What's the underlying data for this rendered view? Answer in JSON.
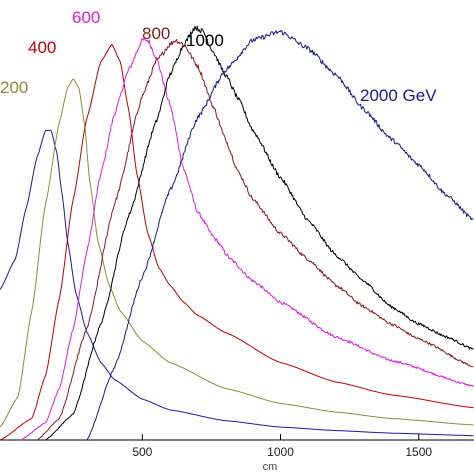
{
  "chart_data": {
    "type": "line",
    "title": "",
    "xlabel": "cm",
    "ylabel": "",
    "xlim": [
      -15,
      1700
    ],
    "ylim": [
      0,
      1.0
    ],
    "x_ticks": [
      500,
      1000,
      1500
    ],
    "x_tick_labels": [
      "500",
      "1000",
      "1500"
    ],
    "grid": false,
    "legend": "none",
    "series": [
      {
        "name": "",
        "label": "",
        "color": "#1a1aa6",
        "x": [
          -15,
          40,
          80,
          120,
          150,
          170,
          190,
          210,
          230,
          260,
          300,
          350,
          400,
          500,
          600,
          800,
          1000,
          1200,
          1400,
          1700
        ],
        "y": [
          0.35,
          0.42,
          0.54,
          0.66,
          0.72,
          0.72,
          0.67,
          0.57,
          0.46,
          0.34,
          0.25,
          0.18,
          0.14,
          0.095,
          0.07,
          0.045,
          0.03,
          0.022,
          0.016,
          0.01
        ]
      },
      {
        "name": "",
        "label": "200",
        "color": "#8c8c3c",
        "x": [
          -15,
          50,
          100,
          150,
          200,
          230,
          250,
          270,
          290,
          310,
          340,
          380,
          420,
          500,
          600,
          800,
          1000,
          1200,
          1400,
          1700
        ],
        "y": [
          0.03,
          0.1,
          0.3,
          0.55,
          0.74,
          0.82,
          0.84,
          0.82,
          0.74,
          0.6,
          0.46,
          0.36,
          0.3,
          0.23,
          0.18,
          0.12,
          0.085,
          0.065,
          0.05,
          0.035
        ]
      },
      {
        "name": "",
        "label": "400",
        "color": "#c00000",
        "x": [
          -15,
          100,
          150,
          200,
          250,
          300,
          350,
          390,
          420,
          450,
          480,
          520,
          560,
          600,
          650,
          700,
          800,
          1000,
          1200,
          1400,
          1700
        ],
        "y": [
          0.0,
          0.05,
          0.15,
          0.33,
          0.56,
          0.75,
          0.88,
          0.92,
          0.88,
          0.77,
          0.62,
          0.48,
          0.4,
          0.36,
          0.32,
          0.29,
          0.25,
          0.18,
          0.135,
          0.105,
          0.075
        ]
      },
      {
        "name": "",
        "label": "600",
        "color": "#e21ce0",
        "x": [
          60,
          150,
          200,
          250,
          300,
          350,
          400,
          450,
          500,
          520,
          550,
          600,
          650,
          700,
          760,
          820,
          900,
          1000,
          1200,
          1400,
          1700
        ],
        "y": [
          0.0,
          0.04,
          0.12,
          0.26,
          0.44,
          0.62,
          0.76,
          0.86,
          0.93,
          0.93,
          0.89,
          0.78,
          0.63,
          0.53,
          0.47,
          0.42,
          0.37,
          0.32,
          0.24,
          0.185,
          0.125
        ]
      },
      {
        "name": "",
        "label": "800",
        "color": "#8b1a1a",
        "x": [
          120,
          200,
          300,
          400,
          500,
          550,
          600,
          620,
          650,
          700,
          760,
          800,
          850,
          900,
          1000,
          1100,
          1200,
          1300,
          1400,
          1500,
          1700
        ],
        "y": [
          0.0,
          0.05,
          0.26,
          0.55,
          0.8,
          0.88,
          0.92,
          0.93,
          0.92,
          0.87,
          0.77,
          0.7,
          0.62,
          0.56,
          0.48,
          0.42,
          0.36,
          0.31,
          0.27,
          0.235,
          0.17
        ]
      },
      {
        "name": "",
        "label": "1000",
        "color": "#000000",
        "x": [
          150,
          250,
          350,
          450,
          550,
          600,
          650,
          690,
          720,
          750,
          800,
          850,
          900,
          1000,
          1100,
          1200,
          1300,
          1400,
          1500,
          1600,
          1700
        ],
        "y": [
          0.0,
          0.06,
          0.27,
          0.52,
          0.74,
          0.85,
          0.92,
          0.96,
          0.95,
          0.91,
          0.85,
          0.79,
          0.72,
          0.61,
          0.51,
          0.43,
          0.37,
          0.31,
          0.27,
          0.24,
          0.21
        ]
      },
      {
        "name": "",
        "label": "2000 GeV",
        "color": "#1a1a8c",
        "x": [
          300,
          400,
          500,
          600,
          700,
          800,
          900,
          1000,
          1100,
          1200,
          1300,
          1400,
          1500,
          1600,
          1700
        ],
        "y": [
          0.0,
          0.17,
          0.38,
          0.58,
          0.75,
          0.86,
          0.93,
          0.95,
          0.91,
          0.85,
          0.77,
          0.7,
          0.64,
          0.57,
          0.51
        ]
      }
    ]
  }
}
